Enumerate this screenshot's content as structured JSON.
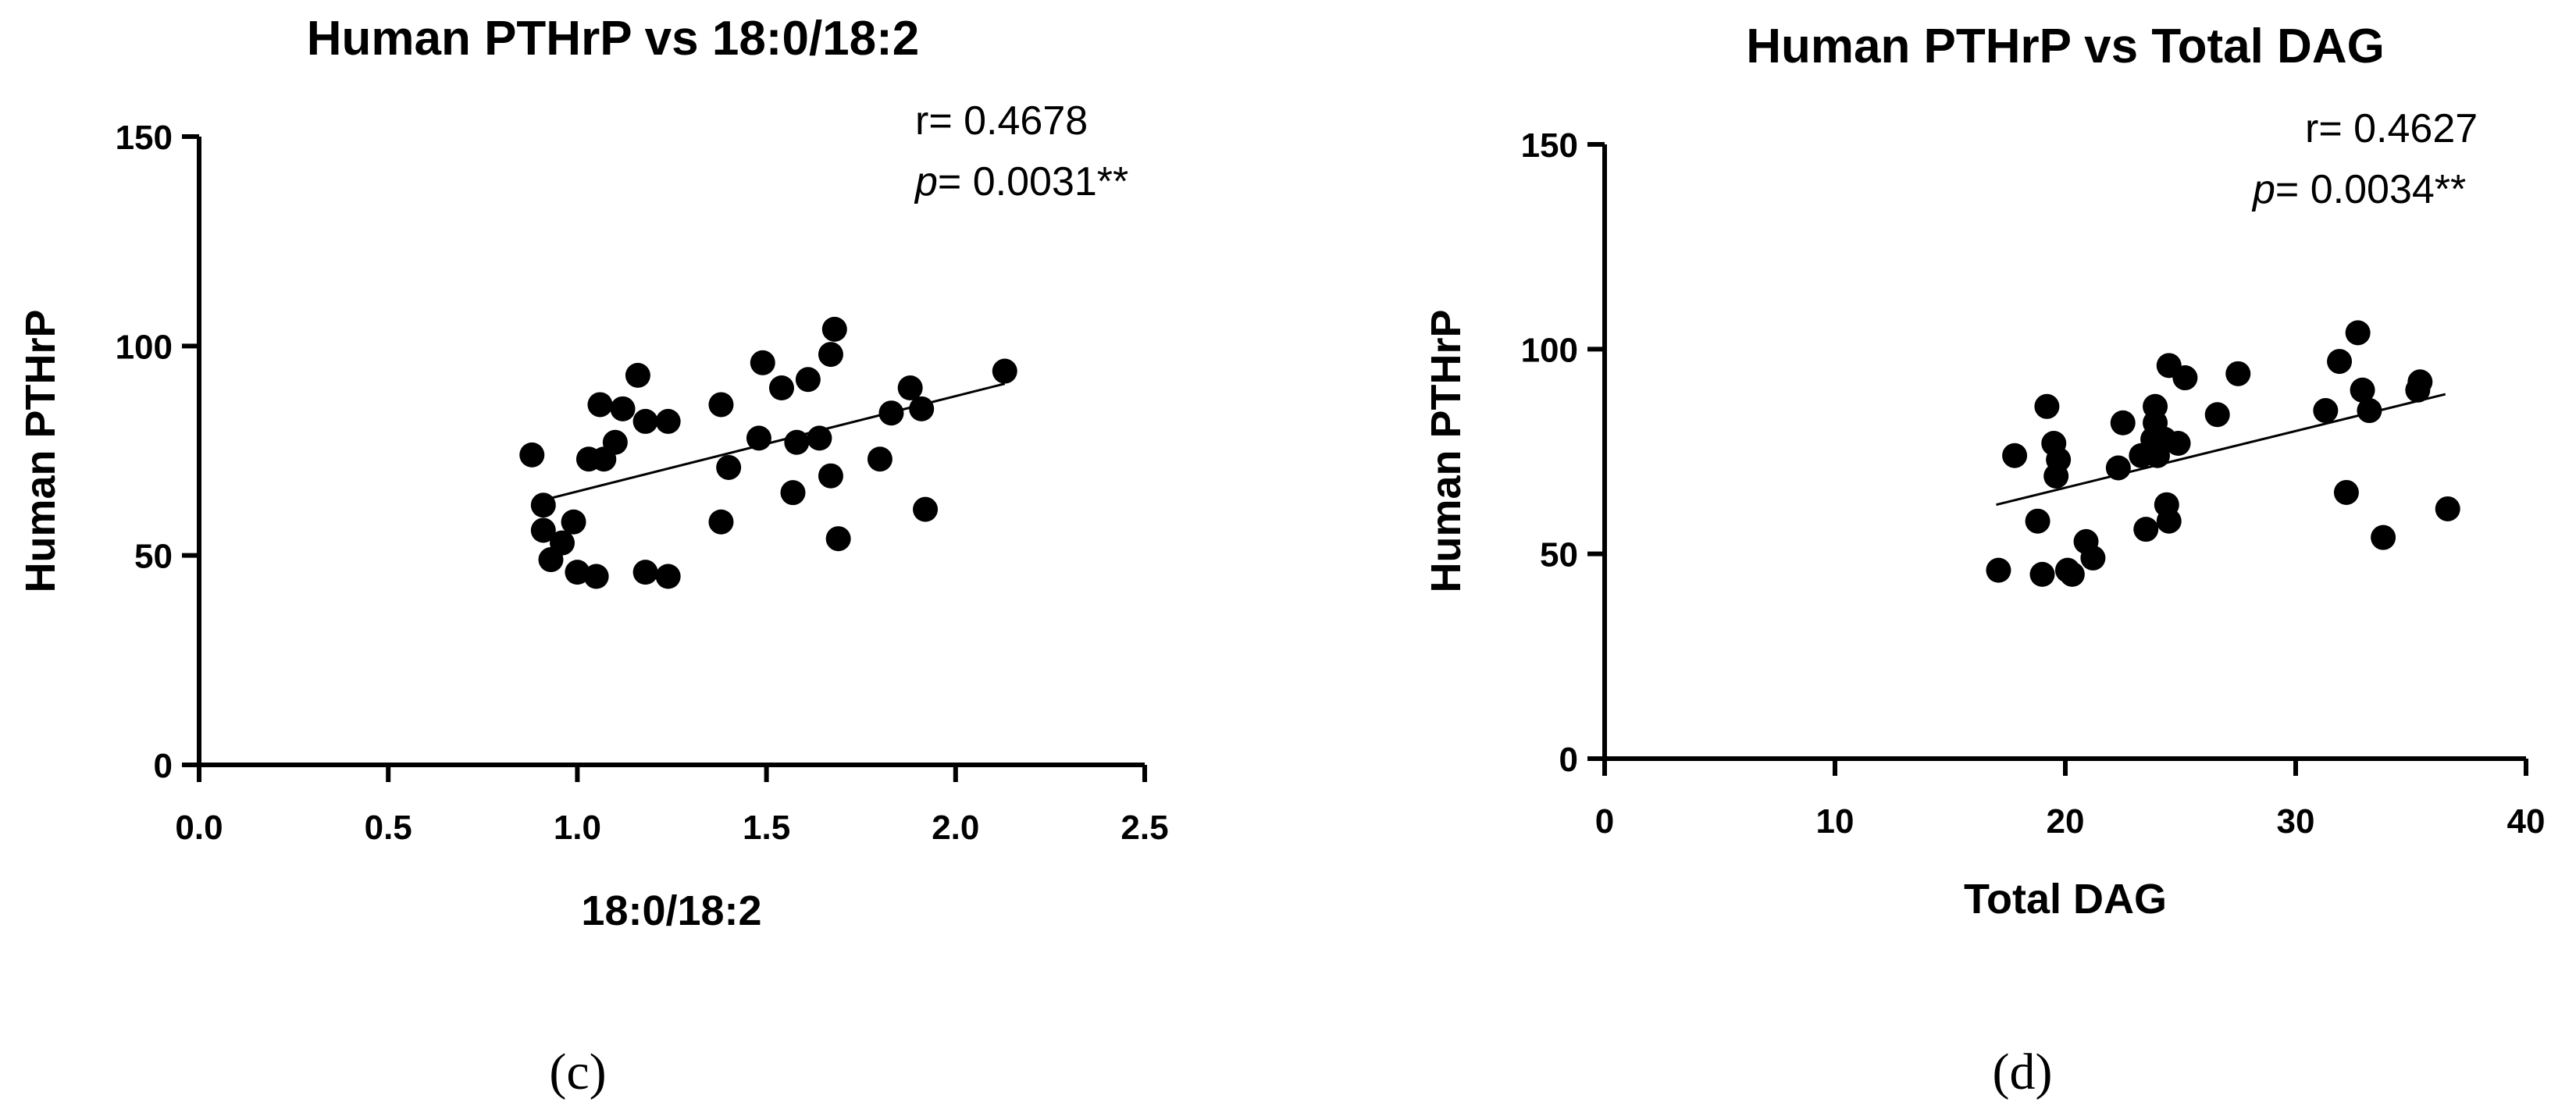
{
  "chart_data": [
    {
      "type": "scatter",
      "title": "Human PTHrP vs 18:0/18:2",
      "xlabel": "18:0/18:2",
      "ylabel": "Human PTHrP",
      "xlim": [
        0,
        2.5
      ],
      "ylim": [
        0,
        150
      ],
      "xticks": [
        "0.0",
        "0.5",
        "1.0",
        "1.5",
        "2.0",
        "2.5"
      ],
      "yticks": [
        "0",
        "50",
        "100",
        "150"
      ],
      "stats": {
        "r": "r= 0.4678",
        "p_label": "p",
        "p": "= 0.0031**"
      },
      "fit": {
        "x": [
          0.9,
          2.13
        ],
        "y": [
          63,
          91
        ]
      },
      "points": [
        [
          0.88,
          74
        ],
        [
          0.91,
          62
        ],
        [
          0.91,
          56
        ],
        [
          0.93,
          49
        ],
        [
          0.96,
          53
        ],
        [
          0.99,
          58
        ],
        [
          1.0,
          46
        ],
        [
          1.03,
          73
        ],
        [
          1.05,
          45
        ],
        [
          1.06,
          86
        ],
        [
          1.07,
          73
        ],
        [
          1.1,
          77
        ],
        [
          1.12,
          85
        ],
        [
          1.16,
          93
        ],
        [
          1.18,
          82
        ],
        [
          1.18,
          46
        ],
        [
          1.24,
          45
        ],
        [
          1.24,
          82
        ],
        [
          1.38,
          58
        ],
        [
          1.38,
          86
        ],
        [
          1.4,
          71
        ],
        [
          1.48,
          78
        ],
        [
          1.49,
          96
        ],
        [
          1.54,
          90
        ],
        [
          1.57,
          65
        ],
        [
          1.58,
          77
        ],
        [
          1.61,
          92
        ],
        [
          1.64,
          78
        ],
        [
          1.67,
          69
        ],
        [
          1.67,
          98
        ],
        [
          1.68,
          104
        ],
        [
          1.69,
          54
        ],
        [
          1.8,
          73
        ],
        [
          1.83,
          84
        ],
        [
          1.88,
          90
        ],
        [
          1.91,
          85
        ],
        [
          1.92,
          61
        ],
        [
          2.13,
          94
        ]
      ]
    },
    {
      "type": "scatter",
      "title": "Human PTHrP vs Total DAG",
      "xlabel": "Total DAG",
      "ylabel": "Human PTHrP",
      "xlim": [
        0,
        40
      ],
      "ylim": [
        0,
        150
      ],
      "xticks": [
        "0",
        "10",
        "20",
        "30",
        "40"
      ],
      "yticks": [
        "0",
        "50",
        "100",
        "150"
      ],
      "stats": {
        "r": "r= 0.4627",
        "p_label": "p",
        "p": "= 0.0034**"
      },
      "fit": {
        "x": [
          17,
          36.5
        ],
        "y": [
          62,
          89
        ]
      },
      "points": [
        [
          17.1,
          46
        ],
        [
          17.8,
          74
        ],
        [
          18.8,
          58
        ],
        [
          19.0,
          45
        ],
        [
          19.2,
          86
        ],
        [
          19.5,
          77
        ],
        [
          19.6,
          69
        ],
        [
          19.7,
          73
        ],
        [
          20.1,
          46
        ],
        [
          20.3,
          45
        ],
        [
          20.9,
          53
        ],
        [
          21.2,
          49
        ],
        [
          22.3,
          71
        ],
        [
          22.5,
          82
        ],
        [
          23.3,
          74
        ],
        [
          23.5,
          56
        ],
        [
          23.8,
          78
        ],
        [
          23.9,
          86
        ],
        [
          23.9,
          82
        ],
        [
          24.0,
          74
        ],
        [
          24.3,
          78
        ],
        [
          24.4,
          62
        ],
        [
          24.5,
          96
        ],
        [
          24.5,
          58
        ],
        [
          24.9,
          77
        ],
        [
          25.2,
          93
        ],
        [
          26.6,
          84
        ],
        [
          27.5,
          94
        ],
        [
          31.3,
          85
        ],
        [
          31.9,
          97
        ],
        [
          32.2,
          65
        ],
        [
          32.7,
          104
        ],
        [
          32.9,
          90
        ],
        [
          33.2,
          85
        ],
        [
          33.8,
          54
        ],
        [
          35.3,
          90
        ],
        [
          35.4,
          92
        ],
        [
          36.6,
          61
        ]
      ]
    }
  ],
  "panel_labels": [
    "(c)",
    "(d)"
  ]
}
